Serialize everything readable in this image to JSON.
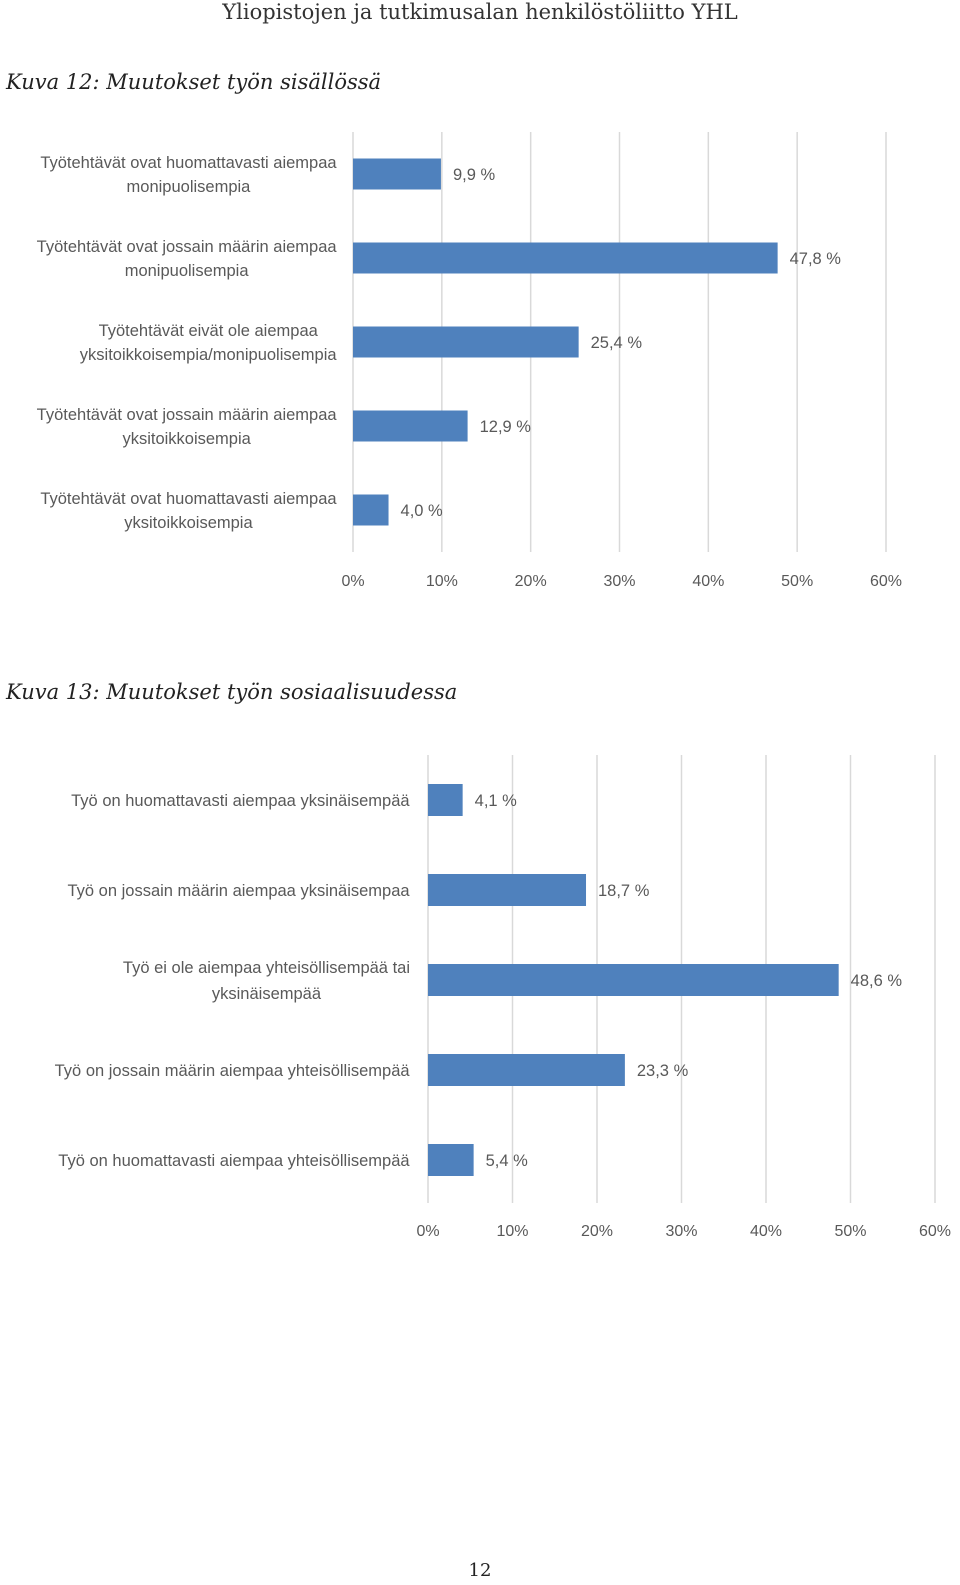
{
  "header": {
    "title": "Yliopistojen ja tutkimusalan henkilöstöliitto YHL"
  },
  "captions": [
    "Kuva 12: Muutokset työn sisällössä",
    "Kuva 13: Muutokset työn sosiaalisuudessa"
  ],
  "page_number": "12",
  "colors": {
    "bar": "#4f81bd",
    "grid": "#d9d9d9",
    "text": "#595959"
  },
  "chart_data": [
    {
      "type": "bar",
      "orientation": "horizontal",
      "categories": [
        "Työtehtävät ovat huomattavasti aiempaa monipuolisempia",
        "Työtehtävät ovat jossain määrin aiempaa monipuolisempia",
        "Työtehtävät eivät ole aiempaa yksitoikkoisempia/monipuolisempia",
        "Työtehtävät ovat jossain määrin aiempaa yksitoikkoisempia",
        "Työtehtävät ovat huomattavasti aiempaa yksitoikkoisempia"
      ],
      "category_lines": [
        [
          "Työtehtävät ovat huomattavasti aiempaa",
          "monipuolisempia"
        ],
        [
          "Työtehtävät ovat jossain määrin aiempaa",
          "monipuolisempia"
        ],
        [
          "Työtehtävät eivät ole aiempaa",
          "yksitoikkoisempia/monipuolisempia"
        ],
        [
          "Työtehtävät ovat jossain määrin aiempaa",
          "yksitoikkoisempia"
        ],
        [
          "Työtehtävät ovat huomattavasti aiempaa",
          "yksitoikkoisempia"
        ]
      ],
      "values": [
        9.9,
        47.8,
        25.4,
        12.9,
        4.0
      ],
      "value_labels": [
        "9,9 %",
        "47,8 %",
        "25,4 %",
        "12,9 %",
        "4,0 %"
      ],
      "xlim": [
        0,
        60
      ],
      "ticks": [
        0,
        10,
        20,
        30,
        40,
        50,
        60
      ],
      "tick_labels": [
        "0%",
        "10%",
        "20%",
        "30%",
        "40%",
        "50%",
        "60%"
      ],
      "grid": true
    },
    {
      "type": "bar",
      "orientation": "horizontal",
      "categories": [
        "Työ on huomattavasti aiempaa yksinäisempää",
        "Työ on jossain määrin aiempaa yksinäisempaa",
        "Työ ei ole aiempaa yhteisöllisempää tai yksinäisempää",
        "Työ on jossain määrin aiempaa yhteisöllisempää",
        "Työ on huomattavasti aiempaa yhteisöllisempää"
      ],
      "category_lines": [
        [
          "Työ on huomattavasti aiempaa yksinäisempää"
        ],
        [
          "Työ on jossain määrin aiempaa yksinäisempaa"
        ],
        [
          "Työ ei ole aiempaa yhteisöllisempää tai",
          "yksinäisempää"
        ],
        [
          "Työ on jossain määrin aiempaa yhteisöllisempää"
        ],
        [
          "Työ on huomattavasti aiempaa yhteisöllisempää"
        ]
      ],
      "values": [
        4.1,
        18.7,
        48.6,
        23.3,
        5.4
      ],
      "value_labels": [
        "4,1 %",
        "18,7 %",
        "48,6 %",
        "23,3 %",
        "5,4 %"
      ],
      "xlim": [
        0,
        60
      ],
      "ticks": [
        0,
        10,
        20,
        30,
        40,
        50,
        60
      ],
      "tick_labels": [
        "0%",
        "10%",
        "20%",
        "30%",
        "40%",
        "50%",
        "60%"
      ],
      "grid": true
    }
  ]
}
